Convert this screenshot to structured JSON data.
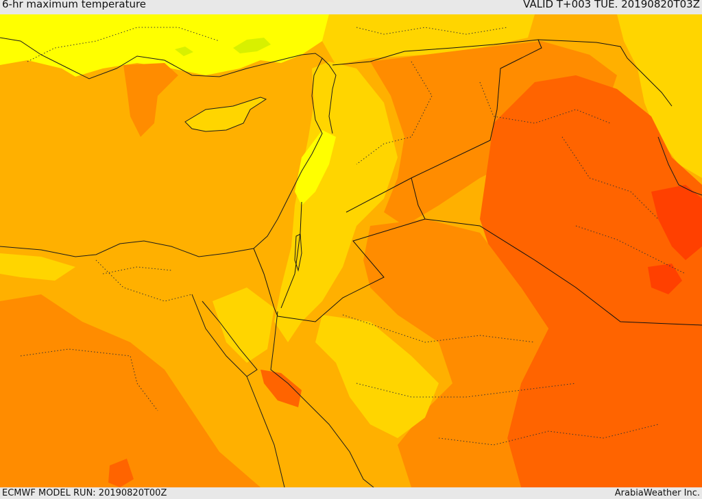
{
  "header": {
    "title": "6-hr maximum temperature",
    "valid": "VALID T+003 TUE. 20190820T03Z"
  },
  "footer": {
    "model_run": "ECMWF MODEL RUN: 20190820T00Z",
    "credit": "ArabiaWeather Inc."
  },
  "map": {
    "parameter": "6-hr maximum temperature",
    "region": "Eastern Mediterranean and Middle East",
    "palette": {
      "greenish": "#d8f000",
      "yellow": "#ffff00",
      "yellow_orange": "#ffd500",
      "light_orange": "#ffb000",
      "orange": "#ff8c00",
      "dark_orange": "#ff6400",
      "red_orange": "#ff4000",
      "coast_line": "#1a1a1a",
      "border_line": "#111111"
    }
  }
}
